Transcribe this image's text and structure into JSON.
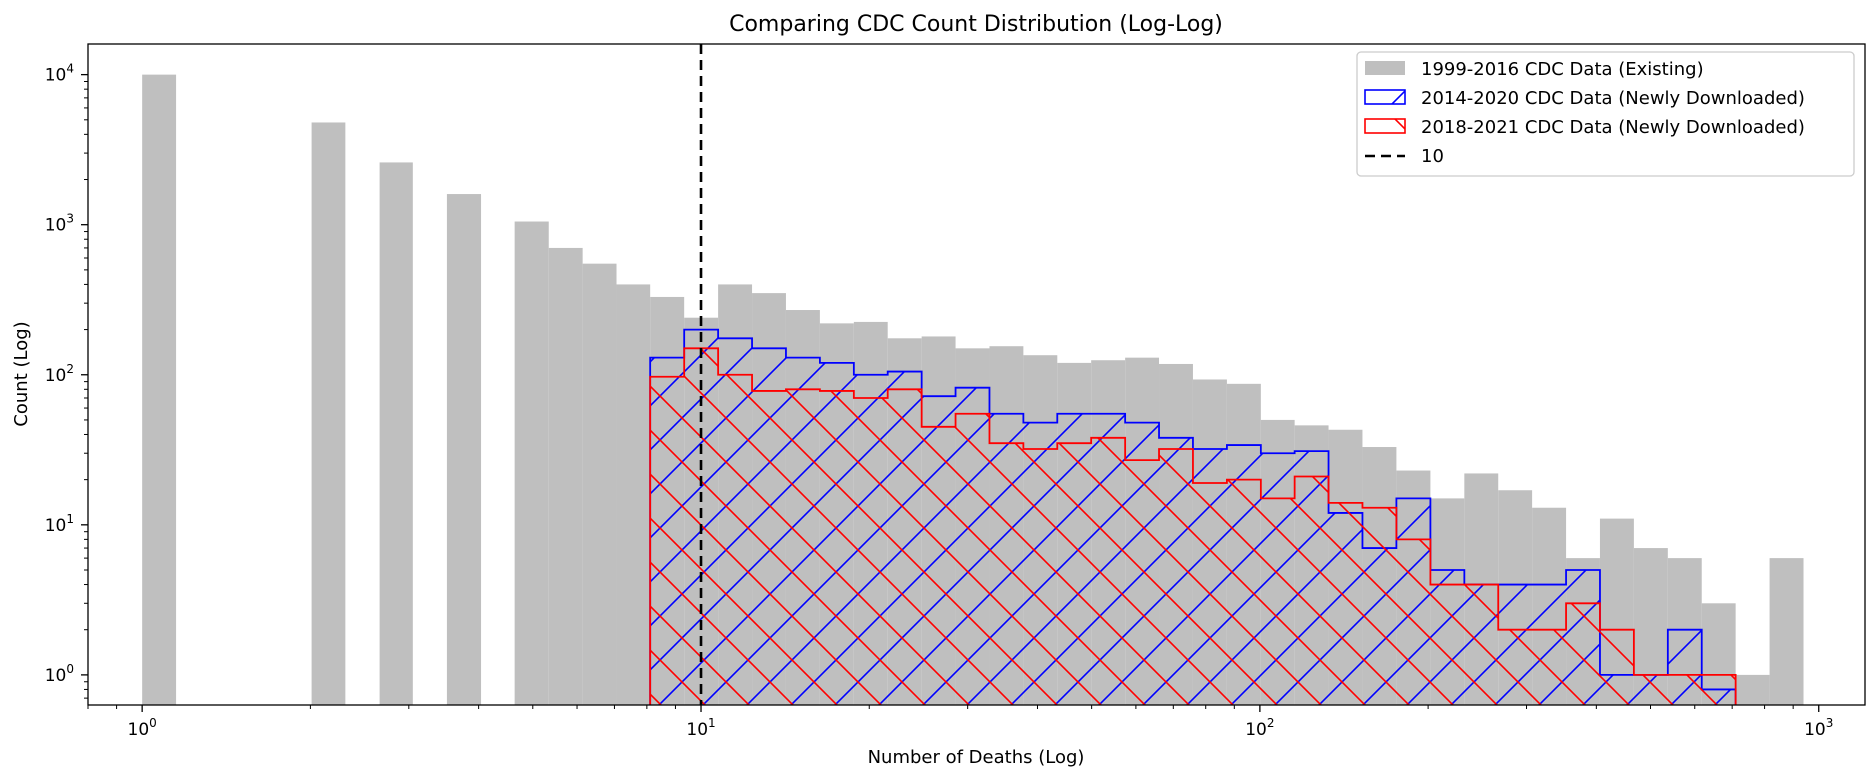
{
  "chart_data": {
    "type": "bar",
    "title": "Comparing CDC Count Distribution (Log-Log)",
    "xlabel": "Number of Deaths (Log)",
    "ylabel": "Count (Log)",
    "xscale": "log",
    "yscale": "log",
    "xlim": [
      0.8,
      1210
    ],
    "ylim": [
      0.63,
      16000
    ],
    "xticks": [
      {
        "value": 1,
        "base": "10",
        "exp": "0"
      },
      {
        "value": 10,
        "base": "10",
        "exp": "1"
      },
      {
        "value": 100,
        "base": "10",
        "exp": "2"
      },
      {
        "value": 1000,
        "base": "10",
        "exp": "3"
      }
    ],
    "yticks": [
      {
        "value": 1,
        "base": "10",
        "exp": "0"
      },
      {
        "value": 10,
        "base": "10",
        "exp": "1"
      },
      {
        "value": 100,
        "base": "10",
        "exp": "2"
      },
      {
        "value": 1000,
        "base": "10",
        "exp": "3"
      },
      {
        "value": 10000,
        "base": "10",
        "exp": "4"
      }
    ],
    "grid": false,
    "legend_position": "top-right",
    "bin_edges": [
      1.0,
      1.15,
      1.32,
      1.52,
      1.75,
      2.01,
      2.31,
      2.66,
      3.05,
      3.51,
      4.04,
      4.64,
      5.34,
      6.14,
      7.06,
      8.11,
      9.33,
      10.73,
      12.34,
      14.19,
      16.32,
      18.77,
      21.58,
      24.82,
      28.54,
      32.82,
      37.74,
      43.4,
      49.9,
      57.4,
      66.0,
      75.9,
      87.3,
      100.4,
      115.4,
      132.7,
      152.6,
      175.5,
      201.9,
      232.2,
      267.0,
      307.0,
      353.1,
      406.0,
      466.9,
      537.0,
      617.5,
      710.1,
      816.7,
      939.2,
      1080.0
    ],
    "series": [
      {
        "name": "1999-2016 CDC Data (Existing)",
        "style": "filled",
        "color": "#bfbfbf",
        "values": [
          10000,
          0,
          0,
          0,
          0,
          4800,
          0,
          2600,
          0,
          1600,
          0,
          1050,
          700,
          550,
          400,
          330,
          240,
          400,
          350,
          270,
          220,
          225,
          175,
          180,
          150,
          155,
          135,
          120,
          125,
          130,
          118,
          93,
          87,
          50,
          46,
          43,
          33,
          23,
          15,
          22,
          17,
          13,
          6,
          11,
          7,
          6,
          3,
          1,
          6,
          0
        ]
      },
      {
        "name": "2014-2020 CDC Data (Newly Downloaded)",
        "style": "step-hatched",
        "color": "#0000ff",
        "hatch": "/",
        "start_bin": 15,
        "values": [
          130,
          200,
          175,
          150,
          130,
          120,
          100,
          105,
          72,
          82,
          55,
          48,
          55,
          55,
          48,
          38,
          32,
          34,
          30,
          31,
          12,
          7,
          15,
          5,
          4,
          4,
          4,
          5,
          1,
          1,
          2,
          0.8,
          0,
          0,
          0
        ]
      },
      {
        "name": "2018-2021 CDC Data (Newly Downloaded)",
        "style": "step-hatched",
        "color": "#ff0000",
        "hatch": "\\",
        "start_bin": 15,
        "values": [
          97,
          150,
          100,
          78,
          80,
          78,
          70,
          80,
          45,
          55,
          35,
          32,
          35,
          38,
          27,
          32,
          19,
          20,
          15,
          21,
          14,
          13,
          8,
          4,
          4,
          2,
          2,
          3,
          2,
          1,
          1,
          1,
          0,
          0,
          0
        ]
      }
    ],
    "vline": {
      "x": 10,
      "label": "10",
      "color": "#000000",
      "style": "dashed"
    }
  }
}
